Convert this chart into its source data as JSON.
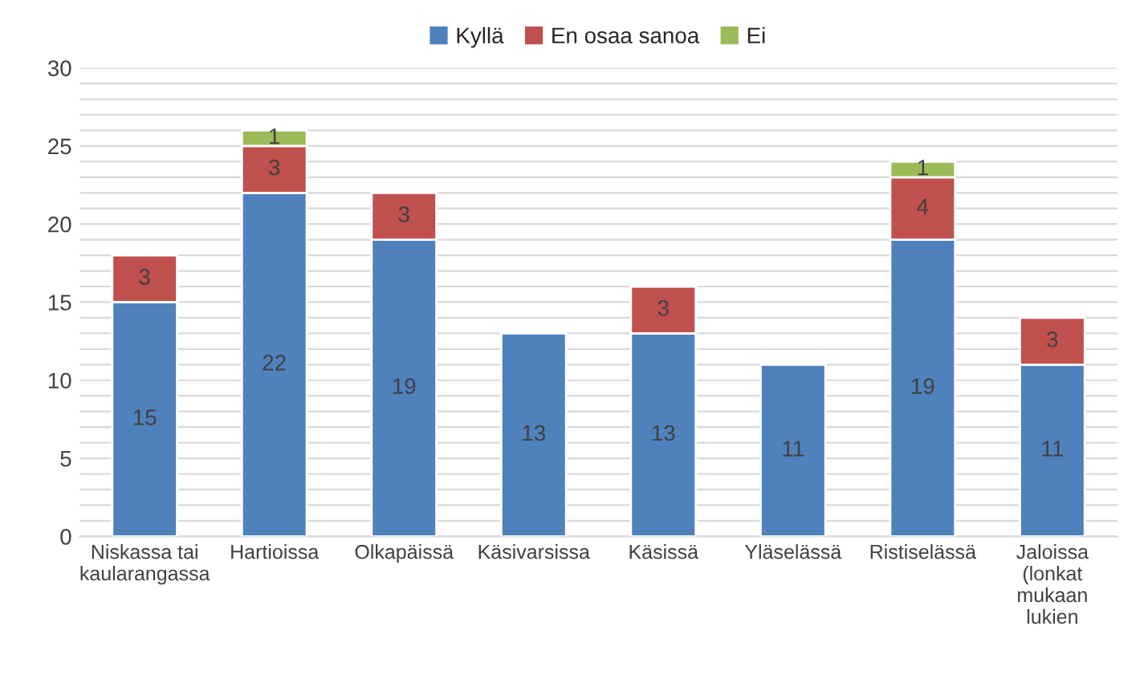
{
  "chart_data": {
    "type": "bar",
    "stacked": true,
    "categories": [
      "Niskassa tai kaularangassa",
      "Hartioissa",
      "Olkapäissä",
      "Käsivarsissa",
      "Käsissä",
      "Yläselässä",
      "Ristiselässä",
      "Jaloissa (lonkat mukaan lukien"
    ],
    "series": [
      {
        "name": "Kyllä",
        "color": "#4f81bd",
        "values": [
          15,
          22,
          19,
          13,
          13,
          11,
          19,
          11
        ]
      },
      {
        "name": "En osaa sanoa",
        "color": "#c0504d",
        "values": [
          3,
          3,
          3,
          null,
          3,
          null,
          4,
          3
        ]
      },
      {
        "name": "Ei",
        "color": "#9bbb59",
        "values": [
          null,
          1,
          null,
          null,
          null,
          null,
          1,
          null
        ]
      }
    ],
    "ylim": [
      0,
      30
    ],
    "yticks": [
      0,
      {
        "value": 1,
        "label": null
      },
      {
        "value": 2,
        "label": null
      },
      {
        "value": 3,
        "label": null
      },
      {
        "value": 4,
        "label": null
      },
      5,
      {
        "value": 6,
        "label": null
      },
      {
        "value": 7,
        "label": null
      },
      {
        "value": 8,
        "label": null
      },
      {
        "value": 9,
        "label": null
      },
      10,
      {
        "value": 11,
        "label": null
      },
      {
        "value": 12,
        "label": null
      },
      {
        "value": 13,
        "label": null
      },
      {
        "value": 14,
        "label": null
      },
      15,
      {
        "value": 16,
        "label": null
      },
      {
        "value": 17,
        "label": null
      },
      {
        "value": 18,
        "label": null
      },
      {
        "value": 19,
        "label": null
      },
      20,
      {
        "value": 21,
        "label": null
      },
      {
        "value": 22,
        "label": null
      },
      {
        "value": 23,
        "label": null
      },
      {
        "value": 24,
        "label": null
      },
      25,
      {
        "value": 26,
        "label": null
      },
      {
        "value": 27,
        "label": null
      },
      {
        "value": 28,
        "label": null
      },
      {
        "value": 29,
        "label": null
      },
      30
    ],
    "grid": "y",
    "legend": "top",
    "data_labels": true
  }
}
